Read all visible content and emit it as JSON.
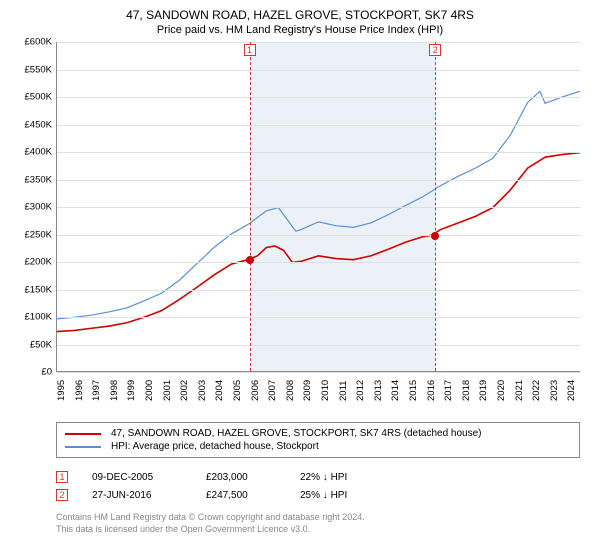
{
  "title": {
    "line1": "47, SANDOWN ROAD, HAZEL GROVE, STOCKPORT, SK7 4RS",
    "line2": "Price paid vs. HM Land Registry's House Price Index (HPI)"
  },
  "chart": {
    "type": "line",
    "background_color": "#ffffff",
    "grid_color": "#e0e0e0",
    "axis_color": "#888888",
    "label_fontsize": 9.5,
    "ylim": [
      0,
      600000
    ],
    "ytick_step": 50000,
    "y_ticks": [
      "£0",
      "£50K",
      "£100K",
      "£150K",
      "£200K",
      "£250K",
      "£300K",
      "£350K",
      "£400K",
      "£450K",
      "£500K",
      "£550K",
      "£600K"
    ],
    "xlim": [
      1995,
      2025
    ],
    "x_ticks": [
      "1995",
      "1996",
      "1997",
      "1998",
      "1999",
      "2000",
      "2001",
      "2002",
      "2003",
      "2004",
      "2005",
      "2006",
      "2007",
      "2008",
      "2009",
      "2010",
      "2011",
      "2012",
      "2013",
      "2014",
      "2015",
      "2016",
      "2017",
      "2018",
      "2019",
      "2020",
      "2021",
      "2022",
      "2023",
      "2024"
    ],
    "shade_band": {
      "x_from": 2005.94,
      "x_to": 2016.49,
      "color": "rgba(200,215,235,0.35)"
    },
    "events": [
      {
        "num": "1",
        "x": 2005.94,
        "line_color": "#d33333"
      },
      {
        "num": "2",
        "x": 2016.49,
        "line_color": "#d33333"
      }
    ],
    "series": [
      {
        "name": "price_paid",
        "label": "47, SANDOWN ROAD, HAZEL GROVE, STOCKPORT, SK7 4RS (detached house)",
        "color": "#cc0000",
        "line_width": 1.6,
        "points": [
          [
            1995,
            72000
          ],
          [
            1996,
            74000
          ],
          [
            1997,
            78000
          ],
          [
            1998,
            82000
          ],
          [
            1999,
            88000
          ],
          [
            2000,
            98000
          ],
          [
            2001,
            110000
          ],
          [
            2002,
            130000
          ],
          [
            2003,
            152000
          ],
          [
            2004,
            175000
          ],
          [
            2005,
            195000
          ],
          [
            2005.94,
            203000
          ],
          [
            2006.5,
            210000
          ],
          [
            2007,
            225000
          ],
          [
            2007.5,
            228000
          ],
          [
            2008,
            220000
          ],
          [
            2008.5,
            198000
          ],
          [
            2009,
            200000
          ],
          [
            2010,
            210000
          ],
          [
            2011,
            205000
          ],
          [
            2012,
            203000
          ],
          [
            2013,
            210000
          ],
          [
            2014,
            222000
          ],
          [
            2015,
            235000
          ],
          [
            2016,
            245000
          ],
          [
            2016.49,
            247500
          ],
          [
            2017,
            258000
          ],
          [
            2018,
            270000
          ],
          [
            2019,
            282000
          ],
          [
            2020,
            298000
          ],
          [
            2021,
            330000
          ],
          [
            2022,
            370000
          ],
          [
            2023,
            390000
          ],
          [
            2024,
            395000
          ],
          [
            2025,
            398000
          ]
        ],
        "markers": [
          {
            "x": 2005.94,
            "y": 203000,
            "color": "#cc0000"
          },
          {
            "x": 2016.49,
            "y": 247500,
            "color": "#cc0000"
          }
        ]
      },
      {
        "name": "hpi",
        "label": "HPI: Average price, detached house, Stockport",
        "color": "#5a8fd6",
        "line_width": 1.2,
        "points": [
          [
            1995,
            95000
          ],
          [
            1996,
            98000
          ],
          [
            1997,
            102000
          ],
          [
            1998,
            108000
          ],
          [
            1999,
            115000
          ],
          [
            2000,
            128000
          ],
          [
            2001,
            142000
          ],
          [
            2002,
            165000
          ],
          [
            2003,
            195000
          ],
          [
            2004,
            225000
          ],
          [
            2005,
            250000
          ],
          [
            2006,
            268000
          ],
          [
            2007,
            292000
          ],
          [
            2007.7,
            298000
          ],
          [
            2008,
            285000
          ],
          [
            2008.7,
            255000
          ],
          [
            2009,
            258000
          ],
          [
            2010,
            272000
          ],
          [
            2011,
            265000
          ],
          [
            2012,
            262000
          ],
          [
            2013,
            270000
          ],
          [
            2014,
            285000
          ],
          [
            2015,
            302000
          ],
          [
            2016,
            318000
          ],
          [
            2017,
            338000
          ],
          [
            2018,
            355000
          ],
          [
            2019,
            370000
          ],
          [
            2020,
            388000
          ],
          [
            2021,
            430000
          ],
          [
            2022,
            490000
          ],
          [
            2022.7,
            510000
          ],
          [
            2023,
            488000
          ],
          [
            2024,
            500000
          ],
          [
            2025,
            510000
          ]
        ]
      }
    ]
  },
  "legend": {
    "items": [
      {
        "color": "#cc0000",
        "label": "47, SANDOWN ROAD, HAZEL GROVE, STOCKPORT, SK7 4RS (detached house)"
      },
      {
        "color": "#5a8fd6",
        "label": "HPI: Average price, detached house, Stockport"
      }
    ]
  },
  "sales": [
    {
      "num": "1",
      "date": "09-DEC-2005",
      "price": "£203,000",
      "delta": "22% ↓ HPI"
    },
    {
      "num": "2",
      "date": "27-JUN-2016",
      "price": "£247,500",
      "delta": "25% ↓ HPI"
    }
  ],
  "footer": {
    "line1": "Contains HM Land Registry data © Crown copyright and database right 2024.",
    "line2": "This data is licensed under the Open Government Licence v3.0."
  }
}
